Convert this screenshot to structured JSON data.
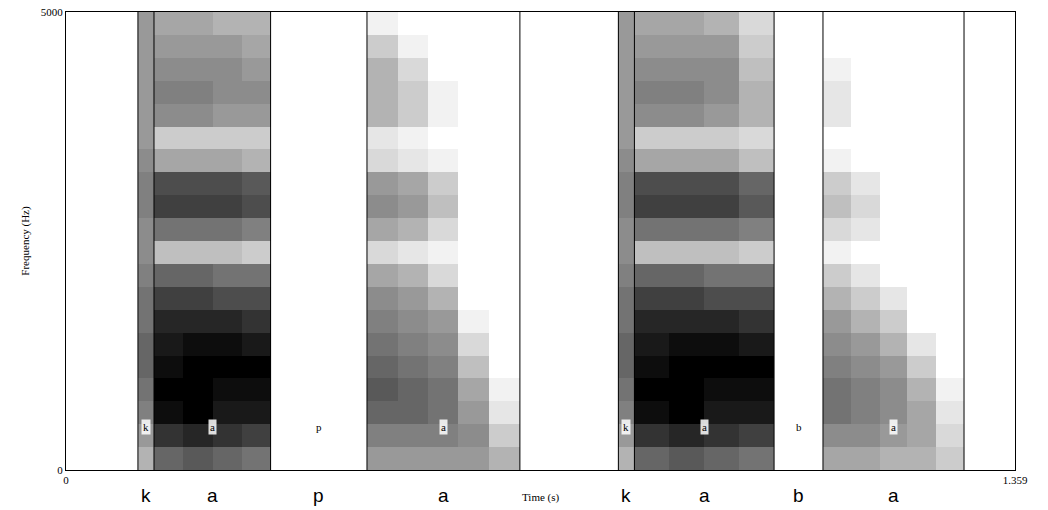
{
  "chart_data": {
    "type": "spectrogram",
    "xlabel": "Time (s)",
    "ylabel": "Frequency (Hz)",
    "xlim": [
      0,
      1.359
    ],
    "xticks": [
      0,
      1.359
    ],
    "ylim": [
      0,
      5000
    ],
    "yticks": [
      0,
      5000
    ],
    "grid": false,
    "segments": [
      {
        "label": "k",
        "start": 0.103,
        "end": 0.126
      },
      {
        "label": "a",
        "start": 0.126,
        "end": 0.293
      },
      {
        "label": "p",
        "start": 0.293,
        "end": 0.431
      },
      {
        "label": "a",
        "start": 0.431,
        "end": 0.65
      },
      {
        "label": "k",
        "start": 0.791,
        "end": 0.814
      },
      {
        "label": "a",
        "start": 0.814,
        "end": 1.014
      },
      {
        "label": "b",
        "start": 1.014,
        "end": 1.084
      },
      {
        "label": "a",
        "start": 1.084,
        "end": 1.286
      }
    ],
    "time_edges": [
      0,
      0.103,
      0.126,
      0.168,
      0.21,
      0.252,
      0.293,
      0.431,
      0.475,
      0.518,
      0.562,
      0.606,
      0.65,
      0.791,
      0.814,
      0.864,
      0.914,
      0.964,
      1.014,
      1.084,
      1.124,
      1.165,
      1.205,
      1.246,
      1.286,
      1.359
    ],
    "frequency_edges": [
      0,
      250,
      500,
      750,
      1000,
      1250,
      1500,
      1750,
      2000,
      2250,
      2500,
      2750,
      3000,
      3250,
      3500,
      3750,
      4000,
      4250,
      4500,
      4750,
      5000
    ],
    "intensity_range": [
      0,
      100
    ],
    "intensity": [
      [
        0,
        0,
        0,
        0,
        0,
        0,
        0,
        0,
        0,
        0,
        0,
        0,
        0,
        0,
        0,
        0,
        0,
        0,
        0,
        0
      ],
      [
        30,
        40,
        50,
        55,
        60,
        60,
        55,
        55,
        50,
        45,
        45,
        50,
        50,
        45,
        40,
        40,
        40,
        40,
        40,
        40
      ],
      [
        60,
        80,
        95,
        100,
        95,
        90,
        85,
        75,
        60,
        25,
        55,
        75,
        70,
        35,
        20,
        45,
        50,
        45,
        40,
        35
      ],
      [
        65,
        85,
        100,
        100,
        100,
        95,
        85,
        75,
        60,
        25,
        55,
        75,
        70,
        35,
        20,
        45,
        50,
        45,
        40,
        35
      ],
      [
        60,
        80,
        90,
        95,
        100,
        95,
        85,
        70,
        55,
        25,
        55,
        75,
        70,
        35,
        20,
        40,
        45,
        45,
        40,
        30
      ],
      [
        55,
        75,
        90,
        95,
        100,
        90,
        80,
        70,
        55,
        20,
        50,
        70,
        65,
        30,
        20,
        40,
        45,
        40,
        35,
        30
      ],
      [
        0,
        0,
        0,
        0,
        0,
        0,
        0,
        0,
        0,
        0,
        0,
        0,
        0,
        0,
        0,
        0,
        0,
        0,
        0,
        0
      ],
      [
        40,
        50,
        60,
        65,
        60,
        55,
        50,
        45,
        35,
        15,
        35,
        45,
        40,
        15,
        10,
        30,
        30,
        30,
        20,
        5
      ],
      [
        40,
        50,
        60,
        60,
        55,
        50,
        45,
        40,
        30,
        10,
        30,
        40,
        35,
        10,
        5,
        20,
        20,
        15,
        5,
        0
      ],
      [
        40,
        50,
        55,
        55,
        50,
        45,
        40,
        30,
        15,
        5,
        15,
        25,
        20,
        5,
        0,
        5,
        5,
        0,
        0,
        0
      ],
      [
        40,
        45,
        40,
        35,
        25,
        15,
        5,
        0,
        0,
        0,
        0,
        0,
        0,
        0,
        0,
        0,
        0,
        0,
        0,
        0
      ],
      [
        30,
        20,
        10,
        5,
        0,
        0,
        0,
        0,
        0,
        0,
        0,
        0,
        0,
        0,
        0,
        0,
        0,
        0,
        0,
        0
      ],
      [
        0,
        0,
        0,
        0,
        0,
        0,
        0,
        0,
        0,
        0,
        0,
        0,
        0,
        0,
        0,
        0,
        0,
        0,
        0,
        0
      ],
      [
        30,
        40,
        50,
        55,
        60,
        60,
        55,
        55,
        50,
        45,
        45,
        50,
        50,
        45,
        40,
        40,
        40,
        40,
        40,
        40
      ],
      [
        60,
        80,
        95,
        100,
        95,
        90,
        85,
        75,
        60,
        25,
        55,
        75,
        70,
        35,
        20,
        45,
        50,
        45,
        40,
        35
      ],
      [
        65,
        85,
        100,
        100,
        100,
        95,
        85,
        75,
        60,
        25,
        55,
        75,
        70,
        35,
        20,
        45,
        50,
        45,
        40,
        35
      ],
      [
        60,
        80,
        90,
        95,
        100,
        95,
        85,
        70,
        55,
        25,
        55,
        75,
        70,
        35,
        20,
        40,
        45,
        45,
        40,
        30
      ],
      [
        55,
        75,
        90,
        95,
        100,
        90,
        80,
        70,
        55,
        20,
        50,
        65,
        60,
        25,
        15,
        30,
        30,
        25,
        20,
        15
      ],
      [
        0,
        0,
        0,
        0,
        0,
        0,
        0,
        0,
        0,
        0,
        0,
        0,
        0,
        0,
        0,
        0,
        0,
        0,
        0,
        0
      ],
      [
        35,
        45,
        55,
        55,
        50,
        45,
        40,
        30,
        20,
        5,
        15,
        25,
        20,
        5,
        0,
        10,
        10,
        5,
        0,
        0
      ],
      [
        35,
        45,
        50,
        50,
        45,
        40,
        30,
        20,
        10,
        0,
        10,
        15,
        10,
        0,
        0,
        0,
        0,
        0,
        0,
        0
      ],
      [
        30,
        40,
        45,
        45,
        40,
        30,
        20,
        10,
        0,
        0,
        0,
        0,
        0,
        0,
        0,
        0,
        0,
        0,
        0,
        0
      ],
      [
        30,
        35,
        35,
        30,
        20,
        10,
        0,
        0,
        0,
        0,
        0,
        0,
        0,
        0,
        0,
        0,
        0,
        0,
        0,
        0
      ],
      [
        20,
        15,
        10,
        5,
        0,
        0,
        0,
        0,
        0,
        0,
        0,
        0,
        0,
        0,
        0,
        0,
        0,
        0,
        0,
        0
      ],
      [
        0,
        0,
        0,
        0,
        0,
        0,
        0,
        0,
        0,
        0,
        0,
        0,
        0,
        0,
        0,
        0,
        0,
        0,
        0,
        0
      ]
    ]
  }
}
